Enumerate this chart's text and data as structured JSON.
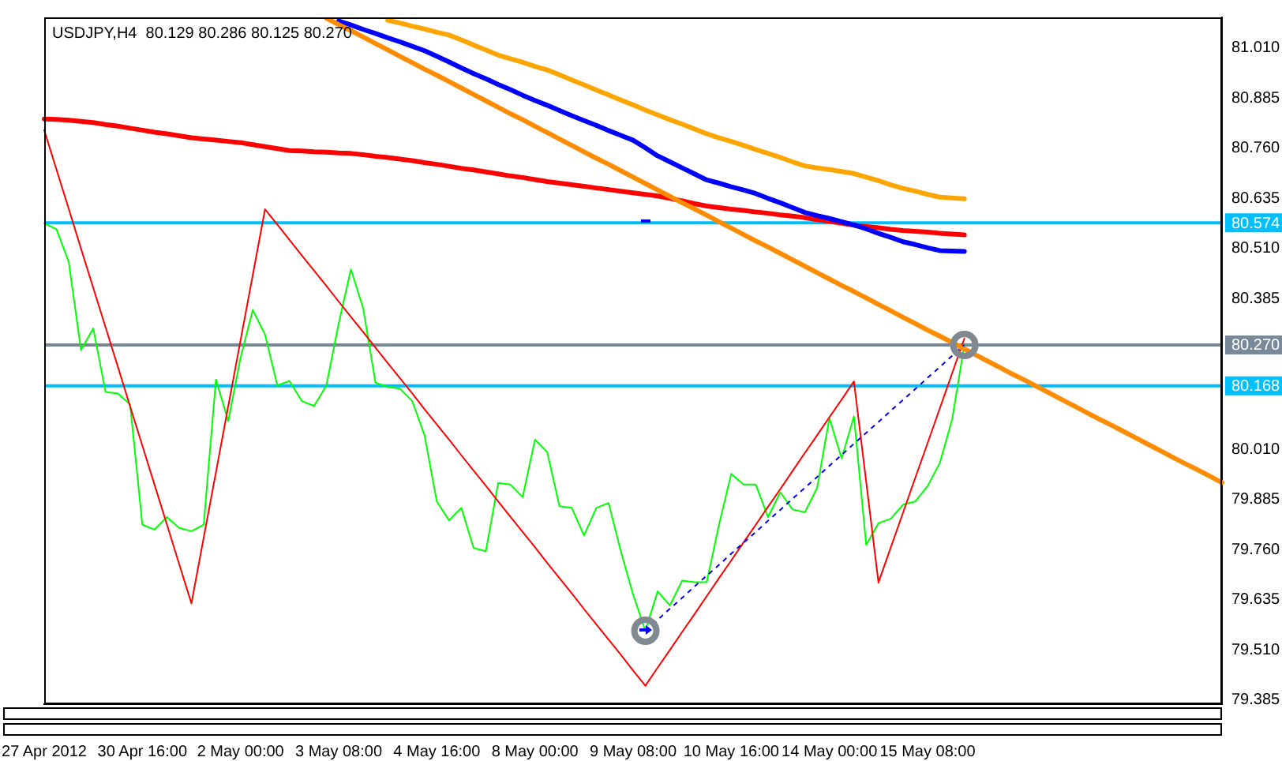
{
  "chart_data": {
    "type": "line",
    "title": "USDJPY,H4  80.129 80.286 80.125 80.270",
    "categories": [
      "27 Apr 2012",
      null,
      null,
      null,
      null,
      null,
      null,
      null,
      "30 Apr 16:00",
      null,
      null,
      null,
      null,
      null,
      null,
      null,
      "2 May 00:00",
      null,
      null,
      null,
      null,
      null,
      null,
      null,
      "3 May 08:00",
      null,
      null,
      null,
      null,
      null,
      null,
      null,
      "4 May 16:00",
      null,
      null,
      null,
      null,
      null,
      null,
      null,
      "8 May 00:00",
      null,
      null,
      null,
      null,
      null,
      null,
      null,
      "9 May 08:00",
      null,
      null,
      null,
      null,
      null,
      null,
      null,
      "10 May 16:00",
      null,
      null,
      null,
      null,
      null,
      null,
      null,
      "14 May 00:00",
      null,
      null,
      null,
      null,
      null,
      null,
      null,
      "15 May 08:00",
      null,
      null,
      null,
      null,
      null,
      null,
      null,
      null,
      null,
      null,
      null,
      null,
      null,
      null,
      null,
      null,
      null,
      null,
      null,
      null,
      null,
      null,
      null,
      null
    ],
    "ylim": [
      79.375,
      81.086
    ],
    "yticks": [
      {
        "value": 81.01,
        "label": "81.010"
      },
      {
        "value": 80.885,
        "label": "80.885"
      },
      {
        "value": 80.76,
        "label": "80.760"
      },
      {
        "value": 80.635,
        "label": "80.635"
      },
      {
        "value": 80.51,
        "label": "80.510"
      },
      {
        "value": 80.385,
        "label": "80.385"
      },
      {
        "value": 80.01,
        "label": "80.010"
      },
      {
        "value": 79.885,
        "label": "79.885"
      },
      {
        "value": 79.76,
        "label": "79.760"
      },
      {
        "value": 79.635,
        "label": "79.635"
      },
      {
        "value": 79.51,
        "label": "79.510"
      },
      {
        "value": 79.385,
        "label": "79.385"
      }
    ],
    "grid": false,
    "series": [
      {
        "color": "#00ff00",
        "values": [
          80.573,
          80.558,
          80.477,
          80.257,
          80.311,
          80.153,
          80.149,
          80.122,
          79.822,
          79.81,
          79.841,
          79.814,
          79.806,
          79.822,
          80.184,
          80.08,
          80.238,
          80.357,
          80.296,
          80.169,
          80.18,
          80.13,
          80.118,
          80.169,
          80.323,
          80.458,
          80.361,
          80.176,
          80.165,
          80.161,
          80.13,
          80.045,
          79.88,
          79.833,
          79.864,
          79.764,
          79.756,
          79.926,
          79.922,
          79.891,
          80.034,
          80.003,
          79.868,
          79.864,
          79.795,
          79.864,
          79.876,
          79.756,
          79.648,
          79.558,
          79.656,
          79.621,
          79.683,
          79.679,
          79.679,
          79.822,
          79.949,
          79.922,
          79.922,
          79.841,
          79.903,
          79.86,
          79.853,
          79.914,
          80.088,
          79.987,
          80.092,
          79.772,
          79.826,
          79.837,
          79.872,
          79.88,
          79.918,
          79.976,
          80.084,
          80.27,
          null,
          null,
          null,
          null,
          null,
          null,
          null,
          null,
          null,
          null,
          null,
          null,
          null,
          null,
          null,
          null,
          null,
          null,
          null,
          null,
          null
        ]
      },
      {
        "color": "#ff0000",
        "values": [
          80.805,
          80.707,
          80.609,
          80.51,
          80.412,
          80.314,
          80.216,
          80.117,
          80.019,
          79.921,
          79.823,
          79.724,
          79.626,
          79.79,
          79.953,
          80.117,
          80.281,
          80.444,
          80.608,
          80.57,
          80.531,
          80.493,
          80.455,
          80.417,
          80.378,
          80.34,
          80.302,
          80.263,
          80.225,
          80.187,
          80.149,
          80.11,
          80.072,
          80.034,
          79.995,
          79.957,
          79.919,
          79.88,
          79.842,
          79.804,
          79.766,
          79.727,
          79.689,
          79.651,
          79.612,
          79.574,
          79.536,
          79.498,
          79.459,
          79.421,
          79.466,
          79.51,
          79.555,
          79.599,
          79.644,
          79.689,
          79.733,
          79.778,
          79.822,
          79.867,
          79.911,
          79.956,
          80.001,
          80.045,
          80.09,
          80.134,
          80.179,
          79.929,
          79.678,
          79.765,
          79.852,
          79.939,
          80.025,
          80.112,
          80.199,
          80.286,
          null,
          null,
          null,
          null,
          null,
          null,
          null,
          null,
          null,
          null,
          null,
          null,
          null,
          null,
          null,
          null,
          null,
          null,
          null,
          null,
          null
        ]
      },
      {
        "color": "#ff0000",
        "values": [
          80.833,
          80.832,
          80.83,
          80.827,
          80.824,
          80.819,
          80.815,
          80.81,
          80.805,
          80.8,
          80.796,
          80.791,
          80.786,
          80.783,
          80.78,
          80.777,
          80.774,
          80.769,
          80.764,
          80.759,
          80.754,
          80.753,
          80.751,
          80.75,
          80.748,
          80.747,
          80.744,
          80.74,
          80.737,
          80.733,
          80.729,
          80.724,
          80.72,
          80.715,
          80.71,
          80.706,
          80.701,
          80.696,
          80.691,
          80.687,
          80.682,
          80.677,
          80.673,
          80.669,
          80.665,
          80.661,
          80.657,
          80.653,
          80.649,
          80.645,
          80.641,
          80.635,
          80.629,
          80.622,
          80.616,
          80.612,
          80.608,
          80.605,
          80.601,
          80.598,
          80.594,
          80.591,
          80.587,
          80.582,
          80.578,
          80.573,
          80.568,
          80.565,
          80.562,
          80.558,
          80.555,
          80.553,
          80.551,
          80.548,
          80.546,
          80.544,
          null,
          null,
          null,
          null,
          null,
          null,
          null,
          null,
          null,
          null,
          null,
          null,
          null,
          null,
          null,
          null,
          null,
          null,
          null,
          null,
          null
        ]
      },
      {
        "color": "#0000ff",
        "values": [
          null,
          null,
          null,
          null,
          null,
          null,
          null,
          null,
          null,
          null,
          null,
          null,
          null,
          null,
          null,
          null,
          null,
          null,
          null,
          null,
          null,
          null,
          null,
          null,
          81.077,
          81.067,
          81.056,
          81.046,
          81.035,
          81.025,
          81.014,
          81.003,
          80.989,
          80.975,
          80.96,
          80.946,
          80.933,
          80.919,
          80.906,
          80.892,
          80.879,
          80.867,
          80.854,
          80.841,
          80.829,
          80.817,
          80.804,
          80.792,
          80.78,
          80.761,
          80.741,
          80.726,
          80.711,
          80.696,
          80.681,
          80.673,
          80.664,
          80.656,
          80.647,
          80.635,
          80.624,
          80.612,
          80.6,
          80.592,
          80.585,
          80.577,
          80.569,
          80.559,
          80.548,
          80.538,
          80.527,
          80.52,
          80.512,
          80.505,
          80.504,
          80.503,
          null,
          null,
          null,
          null,
          null,
          null,
          null,
          null,
          null,
          null,
          null,
          null,
          null,
          null,
          null,
          null,
          null,
          null,
          null,
          null,
          null
        ]
      },
      {
        "color": "#ffa500",
        "values": [
          null,
          null,
          null,
          null,
          null,
          null,
          null,
          null,
          null,
          null,
          null,
          null,
          null,
          null,
          null,
          null,
          null,
          null,
          null,
          null,
          null,
          null,
          null,
          null,
          null,
          null,
          null,
          null,
          81.079,
          81.072,
          81.064,
          81.057,
          81.049,
          81.042,
          81.03,
          81.017,
          81.005,
          80.992,
          80.983,
          80.974,
          80.964,
          80.955,
          80.943,
          80.93,
          80.918,
          80.905,
          80.893,
          80.88,
          80.868,
          80.855,
          80.843,
          80.831,
          80.82,
          80.808,
          80.796,
          80.786,
          80.777,
          80.767,
          80.757,
          80.747,
          80.737,
          80.726,
          80.716,
          80.711,
          80.707,
          80.702,
          80.697,
          80.688,
          80.679,
          80.669,
          80.66,
          80.653,
          80.645,
          80.638,
          80.636,
          80.634,
          null,
          null,
          null,
          null,
          null,
          null,
          null,
          null,
          null,
          null,
          null,
          null,
          null,
          null,
          null,
          null,
          null,
          null,
          null,
          null,
          null
        ]
      },
      {
        "color": "#ff8c00",
        "values": [
          null,
          null,
          null,
          null,
          null,
          null,
          null,
          null,
          null,
          null,
          null,
          null,
          null,
          null,
          null,
          null,
          null,
          null,
          null,
          null,
          null,
          null,
          null,
          81.084,
          81.068,
          81.053,
          81.037,
          81.021,
          81.005,
          80.989,
          80.973,
          80.957,
          80.942,
          80.926,
          80.91,
          80.894,
          80.878,
          80.862,
          80.846,
          80.831,
          80.815,
          80.799,
          80.783,
          80.767,
          80.751,
          80.735,
          80.72,
          80.704,
          80.688,
          80.672,
          80.656,
          80.64,
          80.624,
          80.609,
          80.593,
          80.577,
          80.561,
          80.545,
          80.529,
          80.514,
          80.498,
          80.482,
          80.466,
          80.45,
          80.434,
          80.418,
          80.403,
          80.387,
          80.371,
          80.355,
          80.339,
          80.323,
          80.307,
          80.292,
          80.276,
          80.26,
          80.244,
          80.228,
          80.212,
          80.196,
          80.181,
          80.165,
          80.149,
          80.133,
          80.117,
          80.101,
          80.085,
          80.07,
          80.054,
          80.038,
          80.022,
          80.006,
          79.99,
          79.974,
          79.959,
          79.943,
          79.927
        ]
      },
      {
        "color": "#0000ff",
        "line_style": "dashed",
        "values": [
          null,
          null,
          null,
          null,
          null,
          null,
          null,
          null,
          null,
          null,
          null,
          null,
          null,
          null,
          null,
          null,
          null,
          null,
          null,
          null,
          null,
          null,
          null,
          null,
          null,
          null,
          null,
          null,
          null,
          null,
          null,
          null,
          null,
          null,
          null,
          null,
          null,
          null,
          null,
          null,
          null,
          null,
          null,
          null,
          null,
          null,
          null,
          null,
          null,
          79.558,
          79.585,
          79.613,
          79.64,
          79.668,
          79.695,
          79.722,
          79.75,
          79.777,
          79.804,
          79.832,
          79.859,
          79.887,
          79.914,
          79.941,
          79.969,
          79.996,
          80.024,
          80.051,
          80.078,
          80.106,
          80.133,
          80.16,
          80.188,
          80.215,
          80.243,
          80.27,
          null,
          null,
          null,
          null,
          null,
          null,
          null,
          null,
          null,
          null,
          null,
          null,
          null,
          null,
          null,
          null,
          null,
          null,
          null,
          null,
          null
        ]
      },
      {
        "type": "scatter",
        "color": "#808890",
        "marker": "circle",
        "values": [
          null,
          null,
          null,
          null,
          null,
          null,
          null,
          null,
          null,
          null,
          null,
          null,
          null,
          null,
          null,
          null,
          null,
          null,
          null,
          null,
          null,
          null,
          null,
          null,
          null,
          null,
          null,
          null,
          null,
          null,
          null,
          null,
          null,
          null,
          null,
          null,
          null,
          null,
          null,
          null,
          null,
          null,
          null,
          null,
          null,
          null,
          null,
          null,
          null,
          79.558,
          null,
          null,
          null,
          null,
          null,
          null,
          null,
          null,
          null,
          null,
          null,
          null,
          null,
          null,
          null,
          null,
          null,
          null,
          null,
          null,
          null,
          null,
          null,
          null,
          null,
          80.27,
          null,
          null,
          null,
          null,
          null,
          null,
          null,
          null,
          null,
          null,
          null,
          null,
          null,
          null,
          null,
          null,
          null,
          null,
          null,
          null,
          null
        ]
      }
    ],
    "ref_lines": [
      {
        "axis": "y",
        "value": 80.574,
        "label": "80.574",
        "color": "#00bfff"
      },
      {
        "axis": "y",
        "value": 80.168,
        "label": "80.168",
        "color": "#00bfff"
      },
      {
        "axis": "y",
        "value": 80.27,
        "label": "80.270",
        "color": "#778899"
      }
    ]
  }
}
